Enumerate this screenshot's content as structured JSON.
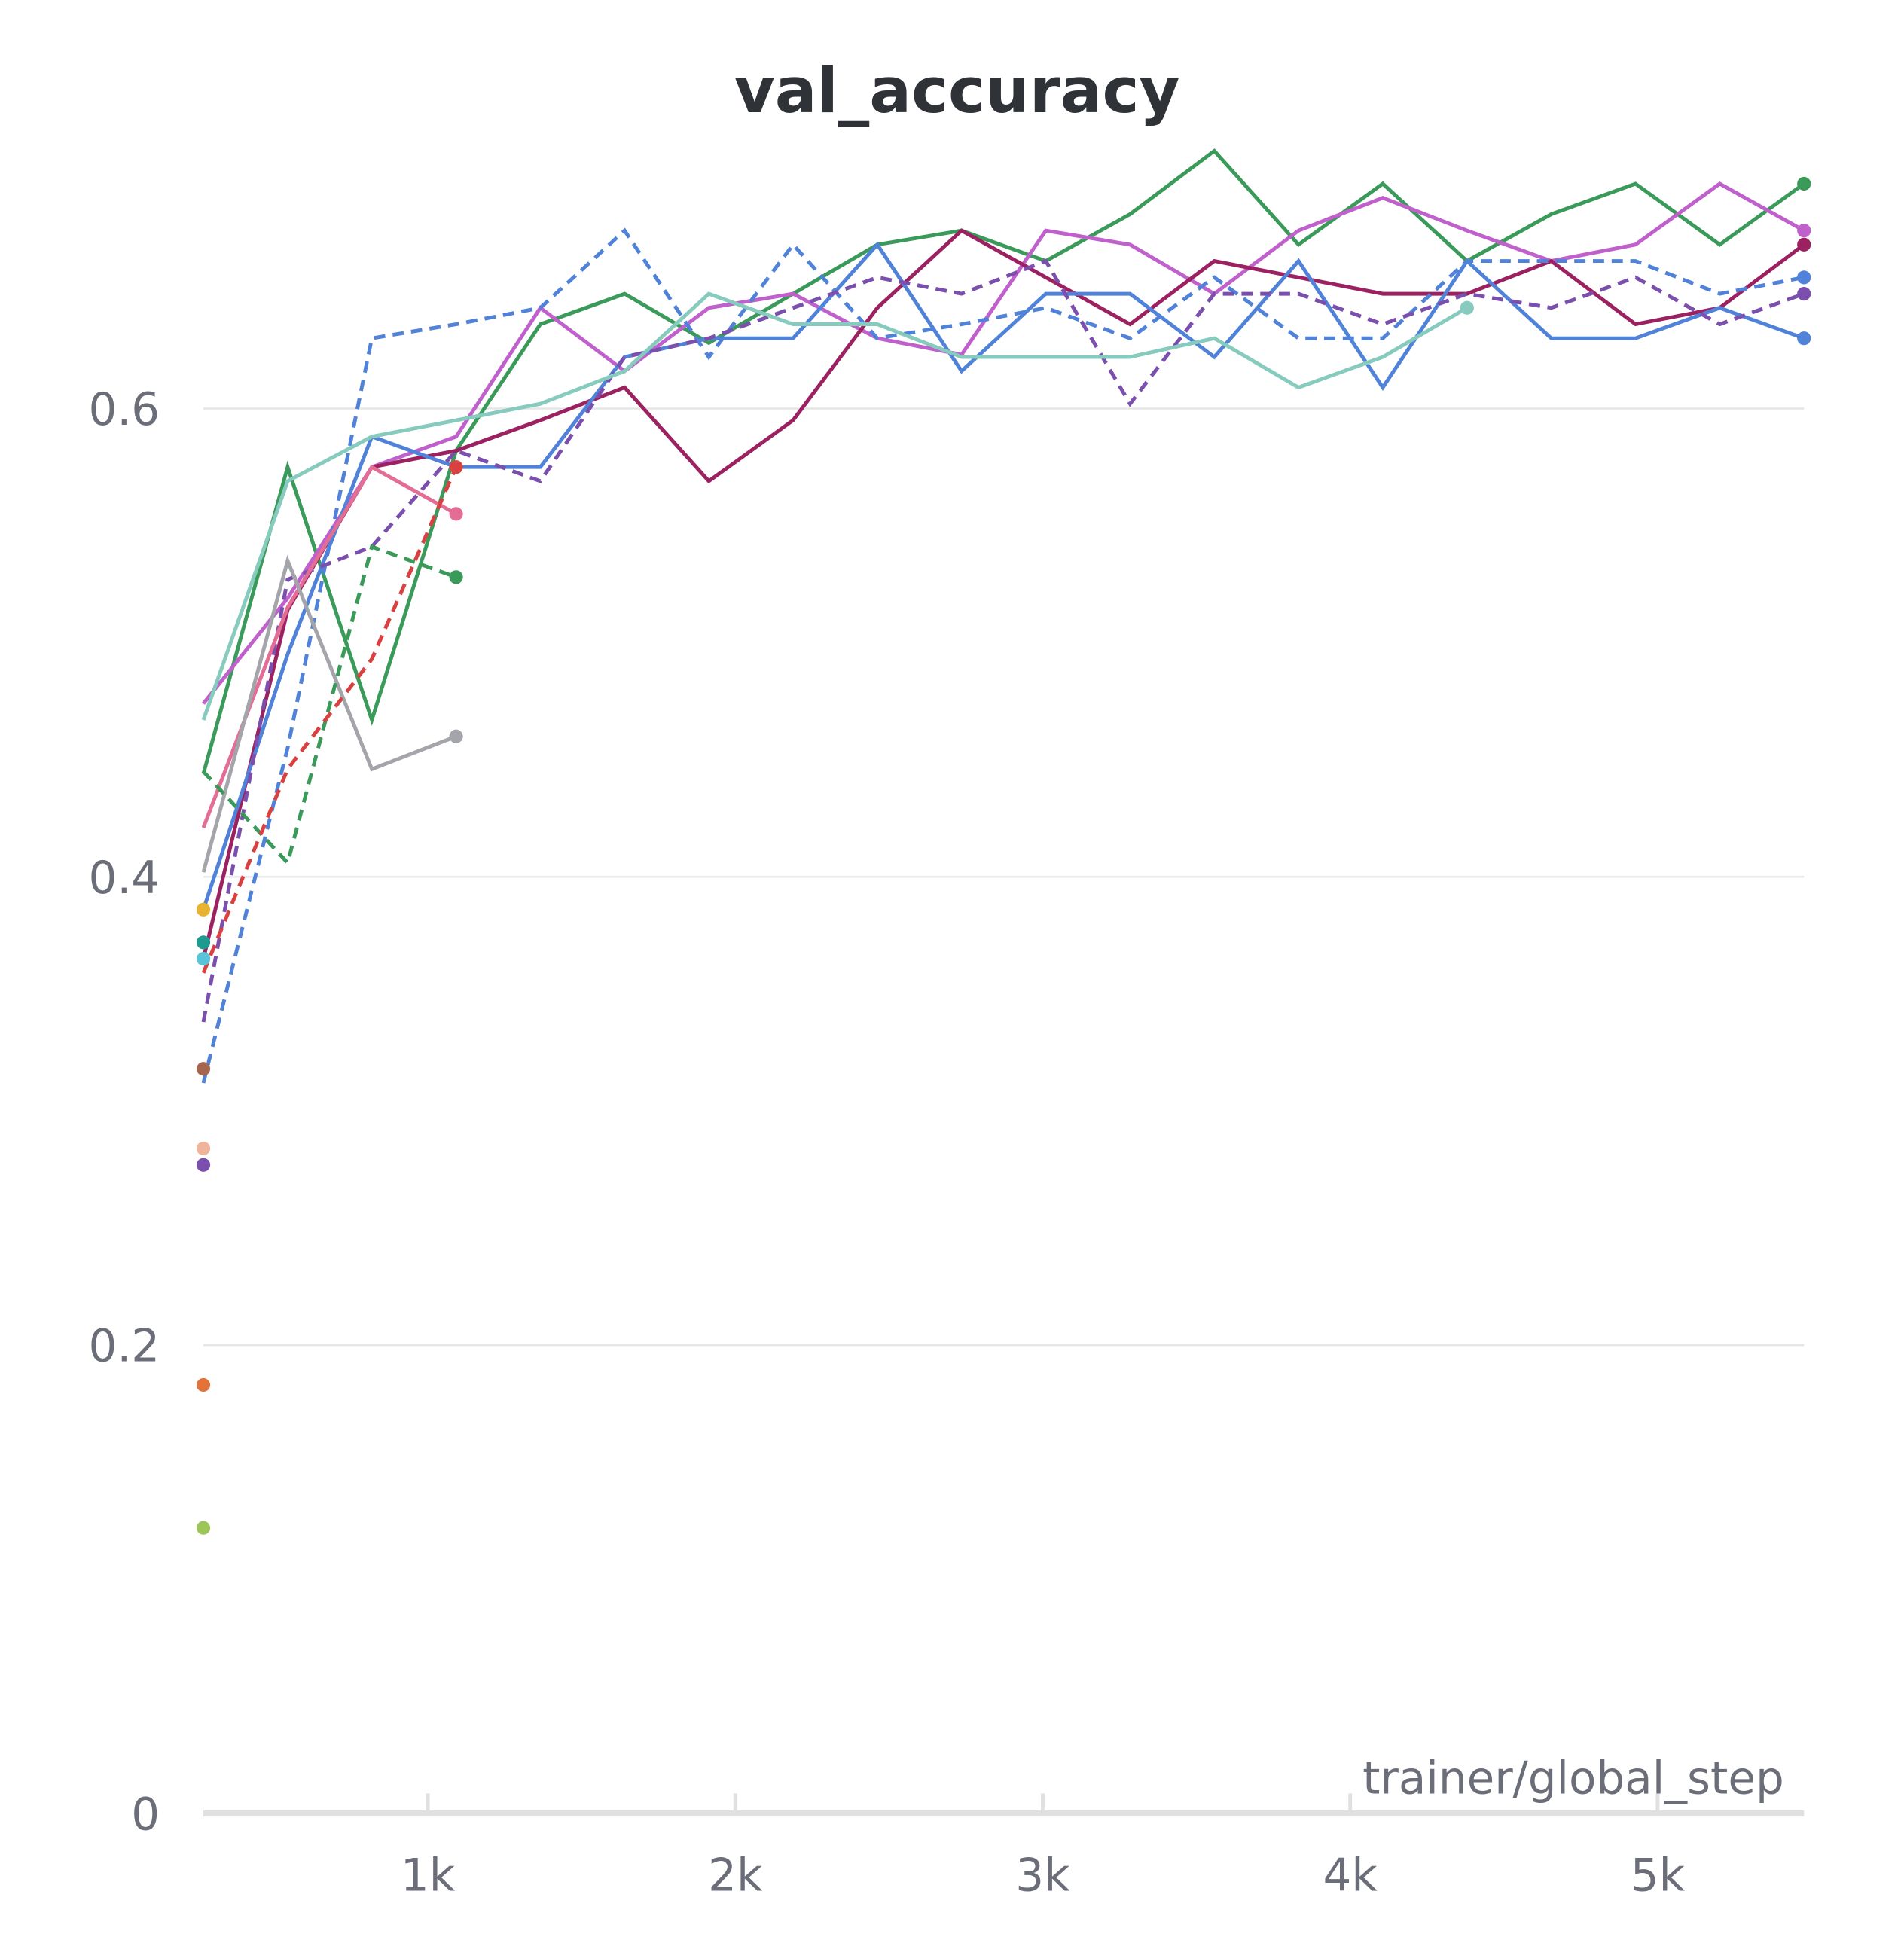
{
  "chart_data": {
    "type": "line",
    "title": "val_accuracy",
    "x_label": "trainer/global_step",
    "x": [
      270,
      544,
      818,
      1092,
      1366,
      1640,
      1914,
      2188,
      2462,
      2736,
      3010,
      3284,
      3558,
      3832,
      4106,
      4380,
      4654,
      4928,
      5202,
      5476
    ],
    "xlim": [
      270,
      5476
    ],
    "xticks": [
      {
        "value": 1000,
        "label": "1k"
      },
      {
        "value": 2000,
        "label": "2k"
      },
      {
        "value": 3000,
        "label": "3k"
      },
      {
        "value": 4000,
        "label": "4k"
      },
      {
        "value": 5000,
        "label": "5k"
      }
    ],
    "ylim": [
      0,
      0.72
    ],
    "yticks": [
      0,
      0.2,
      0.4,
      0.6
    ],
    "grid": true,
    "series": [
      {
        "color": "#3a9a5a",
        "dash": false,
        "values": [
          0.444,
          0.575,
          0.467,
          0.582,
          0.636,
          0.649,
          0.628,
          0.649,
          0.67,
          0.676,
          0.663,
          0.683,
          0.71,
          0.67,
          0.696,
          0.663,
          0.683,
          0.696,
          0.67,
          0.696
        ]
      },
      {
        "color": "#c060cc",
        "dash": false,
        "values": [
          0.474,
          0.519,
          0.575,
          0.588,
          0.643,
          0.616,
          0.643,
          0.649,
          0.63,
          0.623,
          0.676,
          0.67,
          0.649,
          0.676,
          0.69,
          0.676,
          0.663,
          0.67,
          0.696,
          0.676
        ]
      },
      {
        "color": "#9c2160",
        "dash": false,
        "values": [
          0.365,
          0.514,
          0.575,
          0.582,
          0.595,
          0.609,
          0.569,
          0.595,
          0.643,
          0.676,
          0.656,
          0.636,
          0.663,
          0.656,
          0.649,
          0.649,
          0.663,
          0.636,
          0.643,
          0.67
        ]
      },
      {
        "color": "#4f82d8",
        "dash": false,
        "values": [
          0.386,
          0.495,
          0.588,
          0.575,
          0.575,
          0.622,
          0.63,
          0.63,
          0.67,
          0.616,
          0.649,
          0.649,
          0.622,
          0.663,
          0.609,
          0.663,
          0.63,
          0.63,
          0.643,
          0.63
        ]
      },
      {
        "color": "#4f82d8",
        "dash": true,
        "values": [
          0.312,
          0.455,
          0.63,
          0.636,
          0.643,
          0.676,
          0.622,
          0.67,
          0.63,
          0.636,
          0.643,
          0.63,
          0.656,
          0.63,
          0.63,
          0.663,
          0.663,
          0.663,
          0.649,
          0.656
        ]
      },
      {
        "color": "#7b4fae",
        "dash": true,
        "values": [
          0.338,
          0.527,
          0.541,
          0.582,
          0.569,
          0.622,
          0.63,
          0.643,
          0.656,
          0.649,
          0.663,
          0.602,
          0.649,
          0.649,
          0.636,
          0.649,
          0.643,
          0.656,
          0.636,
          0.649
        ]
      },
      {
        "color": "#86cbbd",
        "dash": false,
        "values": [
          0.467,
          0.569,
          0.588,
          0.595,
          0.602,
          0.616,
          0.649,
          0.636,
          0.636,
          0.622,
          0.622,
          0.622,
          0.63,
          0.609,
          0.622,
          0.643,
          null,
          null,
          null,
          null
        ]
      },
      {
        "color": "#e36d94",
        "dash": false,
        "values": [
          0.421,
          0.515,
          0.575,
          0.555,
          null,
          null,
          null,
          null,
          null,
          null,
          null,
          null,
          null,
          null,
          null,
          null,
          null,
          null,
          null,
          null
        ]
      },
      {
        "color": "#a3a5aa",
        "dash": false,
        "values": [
          0.402,
          0.535,
          0.446,
          0.46,
          null,
          null,
          null,
          null,
          null,
          null,
          null,
          null,
          null,
          null,
          null,
          null,
          null,
          null,
          null,
          null
        ]
      },
      {
        "color": "#3a9a5a",
        "dash": true,
        "values": [
          0.445,
          0.406,
          0.541,
          0.528,
          null,
          null,
          null,
          null,
          null,
          null,
          null,
          null,
          null,
          null,
          null,
          null,
          null,
          null,
          null,
          null
        ]
      },
      {
        "color": "#d94040",
        "dash": true,
        "values": [
          0.359,
          0.446,
          0.493,
          0.575,
          null,
          null,
          null,
          null,
          null,
          null,
          null,
          null,
          null,
          null,
          null,
          null,
          null,
          null,
          null,
          null
        ]
      },
      {
        "color": "#e8b330",
        "dash": false,
        "values": [
          0.386,
          null,
          null,
          null,
          null,
          null,
          null,
          null,
          null,
          null,
          null,
          null,
          null,
          null,
          null,
          null,
          null,
          null,
          null,
          null
        ]
      },
      {
        "color": "#1f9a8f",
        "dash": false,
        "values": [
          0.372,
          null,
          null,
          null,
          null,
          null,
          null,
          null,
          null,
          null,
          null,
          null,
          null,
          null,
          null,
          null,
          null,
          null,
          null,
          null
        ]
      },
      {
        "color": "#5bc3d8",
        "dash": false,
        "values": [
          0.365,
          null,
          null,
          null,
          null,
          null,
          null,
          null,
          null,
          null,
          null,
          null,
          null,
          null,
          null,
          null,
          null,
          null,
          null,
          null
        ]
      },
      {
        "color": "#a5654f",
        "dash": false,
        "values": [
          0.318,
          null,
          null,
          null,
          null,
          null,
          null,
          null,
          null,
          null,
          null,
          null,
          null,
          null,
          null,
          null,
          null,
          null,
          null,
          null
        ]
      },
      {
        "color": "#f0b49a",
        "dash": false,
        "values": [
          0.284,
          null,
          null,
          null,
          null,
          null,
          null,
          null,
          null,
          null,
          null,
          null,
          null,
          null,
          null,
          null,
          null,
          null,
          null,
          null
        ]
      },
      {
        "color": "#7b4fae",
        "dash": false,
        "values": [
          0.277,
          null,
          null,
          null,
          null,
          null,
          null,
          null,
          null,
          null,
          null,
          null,
          null,
          null,
          null,
          null,
          null,
          null,
          null,
          null
        ]
      },
      {
        "color": "#e2733a",
        "dash": false,
        "values": [
          0.183,
          null,
          null,
          null,
          null,
          null,
          null,
          null,
          null,
          null,
          null,
          null,
          null,
          null,
          null,
          null,
          null,
          null,
          null,
          null
        ]
      },
      {
        "color": "#9dc55a",
        "dash": false,
        "values": [
          0.122,
          null,
          null,
          null,
          null,
          null,
          null,
          null,
          null,
          null,
          null,
          null,
          null,
          null,
          null,
          null,
          null,
          null,
          null,
          null
        ]
      }
    ]
  }
}
